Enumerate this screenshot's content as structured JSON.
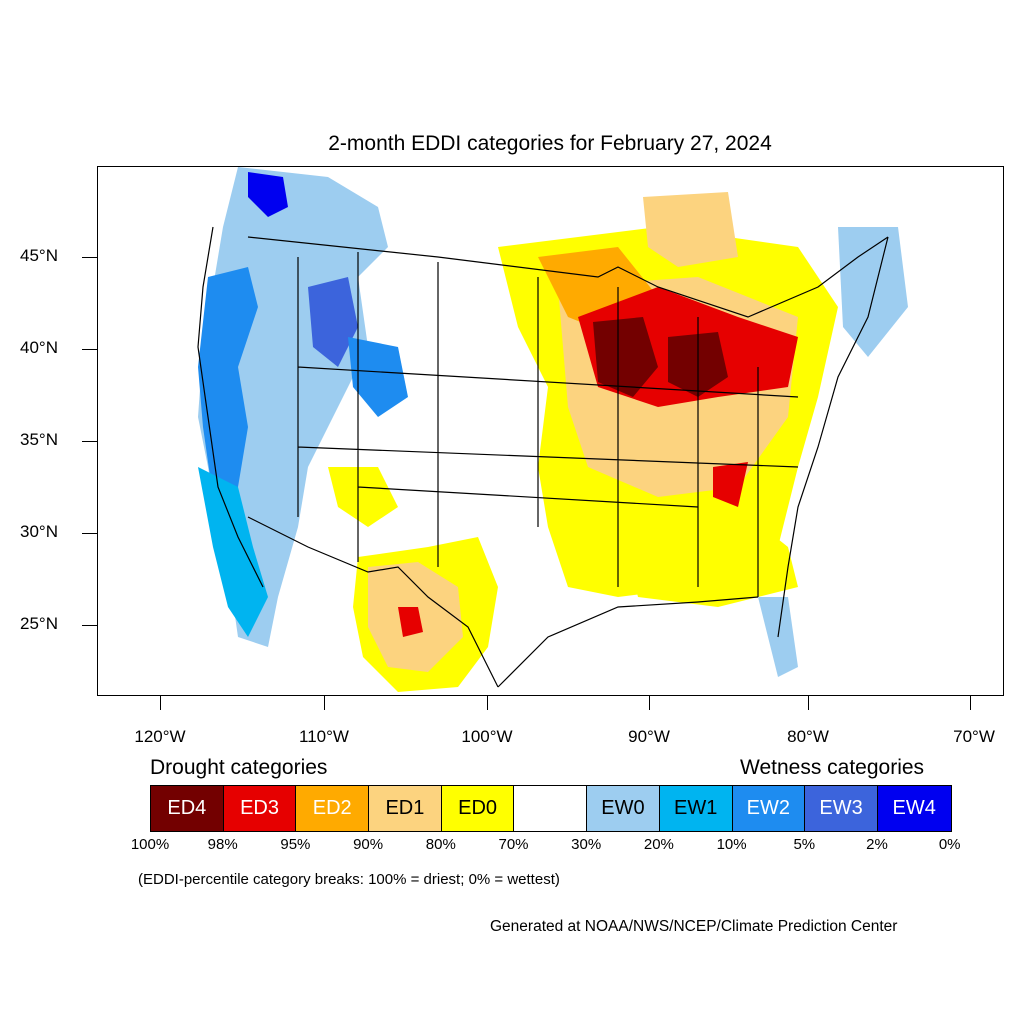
{
  "map": {
    "title": "2-month EDDI categories for February 27, 2024",
    "lat_labels": [
      "45°N",
      "40°N",
      "35°N",
      "30°N",
      "25°N"
    ],
    "lon_labels": [
      "120°W",
      "110°W",
      "100°W",
      "90°W",
      "80°W",
      "70°W"
    ]
  },
  "legend": {
    "drought_heading": "Drought categories",
    "wetness_heading": "Wetness categories",
    "categories": [
      {
        "label": "ED4",
        "color": "#730000",
        "text_color": "#ffffff"
      },
      {
        "label": "ED3",
        "color": "#e60000",
        "text_color": "#ffffff"
      },
      {
        "label": "ED2",
        "color": "#ffaa00",
        "text_color": "#ffffff"
      },
      {
        "label": "ED1",
        "color": "#fcd37f",
        "text_color": "#000000"
      },
      {
        "label": "ED0",
        "color": "#ffff00",
        "text_color": "#000000"
      },
      {
        "label": "",
        "color": "#ffffff",
        "text_color": "#000000"
      },
      {
        "label": "EW0",
        "color": "#9dcdf0",
        "text_color": "#000000"
      },
      {
        "label": "EW1",
        "color": "#00b4f0",
        "text_color": "#000000"
      },
      {
        "label": "EW2",
        "color": "#1e8cf0",
        "text_color": "#ffffff"
      },
      {
        "label": "EW3",
        "color": "#3c64dc",
        "text_color": "#ffffff"
      },
      {
        "label": "EW4",
        "color": "#0000f0",
        "text_color": "#ffffff"
      }
    ],
    "percentiles": [
      "100%",
      "98%",
      "95%",
      "90%",
      "80%",
      "70%",
      "30%",
      "20%",
      "10%",
      "5%",
      "2%",
      "0%"
    ],
    "note": "(EDDI-percentile category breaks: 100% = driest; 0% = wettest)",
    "credit": "Generated at NOAA/NWS/NCEP/Climate Prediction Center"
  }
}
